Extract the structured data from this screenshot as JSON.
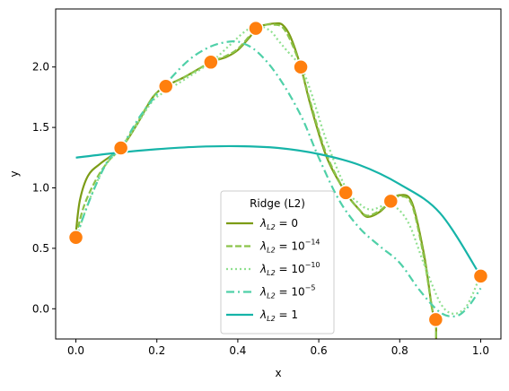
{
  "chart_data": {
    "type": "line",
    "title": "",
    "xlabel": "x",
    "ylabel": "y",
    "xlim": [
      -0.05,
      1.05
    ],
    "ylim": [
      -0.25,
      2.48
    ],
    "xticks": [
      "0.0",
      "0.2",
      "0.4",
      "0.6",
      "0.8",
      "1.0"
    ],
    "yticks": [
      "0.0",
      "0.5",
      "1.0",
      "1.5",
      "2.0"
    ],
    "grid": false,
    "legend": {
      "title": "Ridge (L2)",
      "location": "lower-center",
      "entries": [
        {
          "label_main": "λ",
          "label_sub": "L2",
          "label_eq": " = 0",
          "label_sup": ""
        },
        {
          "label_main": "λ",
          "label_sub": "L2",
          "label_eq": " = 10",
          "label_sup": "−14"
        },
        {
          "label_main": "λ",
          "label_sub": "L2",
          "label_eq": " = 10",
          "label_sup": "−10"
        },
        {
          "label_main": "λ",
          "label_sub": "L2",
          "label_eq": " = 10",
          "label_sup": "−5"
        },
        {
          "label_main": "λ",
          "label_sub": "L2",
          "label_eq": " = 1",
          "label_sup": ""
        }
      ]
    },
    "points": {
      "color": "#ff7f0e",
      "x": [
        0.0,
        0.1111,
        0.2222,
        0.3333,
        0.4444,
        0.5556,
        0.6667,
        0.7778,
        0.8889,
        1.0
      ],
      "y": [
        0.59,
        1.33,
        1.84,
        2.04,
        2.32,
        2.0,
        0.96,
        0.89,
        -0.09,
        0.27
      ]
    },
    "series": [
      {
        "color": "#7c9c16",
        "dash": "",
        "width": 2.2,
        "x": [
          0.0,
          0.01,
          0.03,
          0.06,
          0.1111,
          0.15,
          0.19,
          0.2222,
          0.27,
          0.3333,
          0.37,
          0.4,
          0.43,
          0.45,
          0.47,
          0.49,
          0.51,
          0.53,
          0.5556,
          0.58,
          0.62,
          0.6667,
          0.7,
          0.72,
          0.75,
          0.7778,
          0.8,
          0.83,
          0.86,
          0.88,
          0.8889,
          0.89
        ],
        "y": [
          0.63,
          0.9,
          1.1,
          1.2,
          1.33,
          1.52,
          1.75,
          1.84,
          1.92,
          2.04,
          2.08,
          2.14,
          2.25,
          2.33,
          2.35,
          2.36,
          2.35,
          2.25,
          2.0,
          1.68,
          1.25,
          0.96,
          0.82,
          0.76,
          0.8,
          0.89,
          0.94,
          0.88,
          0.45,
          0.0,
          -0.09,
          -0.25
        ]
      },
      {
        "color": "#8bc34a",
        "dash": "7,3",
        "width": 2.2,
        "x": [
          0.0,
          0.02,
          0.05,
          0.08,
          0.1111,
          0.15,
          0.19,
          0.2222,
          0.27,
          0.3333,
          0.37,
          0.4,
          0.43,
          0.45,
          0.47,
          0.49,
          0.51,
          0.53,
          0.5556,
          0.58,
          0.62,
          0.6667,
          0.7,
          0.72,
          0.75,
          0.7778,
          0.8,
          0.83,
          0.86,
          0.88,
          0.8889,
          0.89
        ],
        "y": [
          0.6,
          0.85,
          1.07,
          1.22,
          1.33,
          1.53,
          1.75,
          1.84,
          1.92,
          2.04,
          2.09,
          2.15,
          2.26,
          2.33,
          2.35,
          2.35,
          2.33,
          2.22,
          2.0,
          1.7,
          1.27,
          0.96,
          0.82,
          0.77,
          0.81,
          0.89,
          0.93,
          0.86,
          0.42,
          0.0,
          -0.09,
          -0.25
        ]
      },
      {
        "color": "#90e090",
        "dash": "2,3",
        "width": 2.2,
        "x": [
          0.0,
          0.03,
          0.07,
          0.1111,
          0.15,
          0.19,
          0.2222,
          0.27,
          0.3333,
          0.38,
          0.42,
          0.45,
          0.48,
          0.5,
          0.52,
          0.5556,
          0.58,
          0.62,
          0.6667,
          0.7,
          0.73,
          0.7778,
          0.82,
          0.86,
          0.9,
          0.93,
          0.96,
          0.98,
          0.99,
          1.0
        ],
        "y": [
          0.57,
          0.87,
          1.17,
          1.33,
          1.52,
          1.72,
          1.8,
          1.9,
          2.04,
          2.18,
          2.3,
          2.34,
          2.3,
          2.22,
          2.14,
          2.0,
          1.8,
          1.38,
          1.0,
          0.87,
          0.82,
          0.86,
          0.72,
          0.37,
          0.05,
          -0.04,
          0.0,
          0.12,
          0.2,
          0.27
        ]
      },
      {
        "color": "#4fd0a8",
        "dash": "9,4,2,4",
        "width": 2.2,
        "x": [
          0.0,
          0.04,
          0.08,
          0.1111,
          0.16,
          0.2222,
          0.28,
          0.3333,
          0.38,
          0.41,
          0.45,
          0.5,
          0.5556,
          0.6,
          0.65,
          0.7,
          0.75,
          0.8,
          0.85,
          0.9,
          0.94,
          0.97,
          1.0
        ],
        "y": [
          0.59,
          0.95,
          1.23,
          1.33,
          1.6,
          1.86,
          2.06,
          2.17,
          2.21,
          2.2,
          2.12,
          1.92,
          1.6,
          1.25,
          0.9,
          0.67,
          0.52,
          0.38,
          0.15,
          -0.03,
          -0.06,
          0.02,
          0.17
        ]
      },
      {
        "color": "#16b4a8",
        "dash": "",
        "width": 2.2,
        "x": [
          0.0,
          0.1,
          0.2,
          0.3,
          0.4,
          0.5,
          0.6,
          0.7,
          0.8,
          0.9,
          1.0
        ],
        "y": [
          1.25,
          1.29,
          1.32,
          1.34,
          1.345,
          1.33,
          1.28,
          1.19,
          1.03,
          0.79,
          0.27
        ]
      }
    ]
  }
}
